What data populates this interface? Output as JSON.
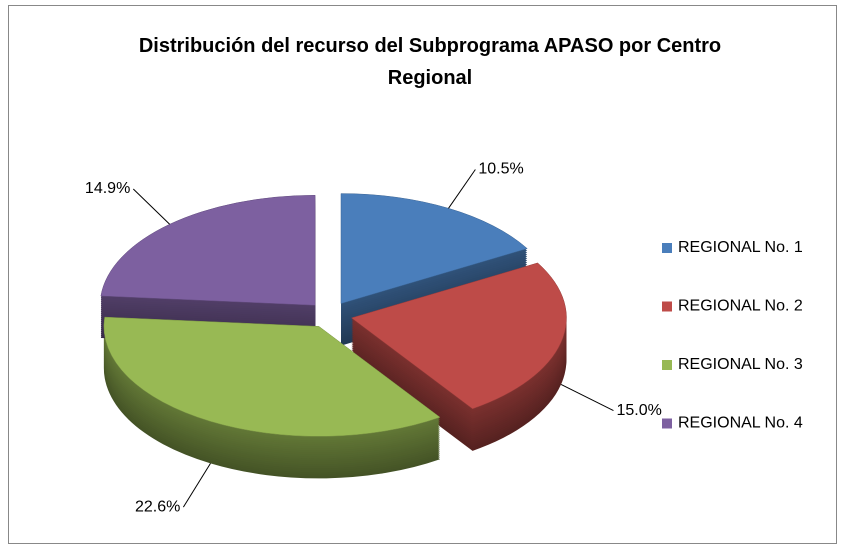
{
  "chart_data": {
    "type": "pie3d",
    "title": "Distribución del recurso del Subprograma APASO por Centro Regional",
    "categories": [
      "REGIONAL No. 1",
      "REGIONAL No. 2",
      "REGIONAL No. 3",
      "REGIONAL No. 4"
    ],
    "values": [
      10.5,
      15.0,
      22.6,
      14.9
    ],
    "value_labels": [
      "10.5%",
      "15.0%",
      "22.6%",
      "14.9%"
    ],
    "colors": [
      "#4a7ebb",
      "#be4b48",
      "#98b954",
      "#7d60a0"
    ],
    "legend": "right"
  }
}
